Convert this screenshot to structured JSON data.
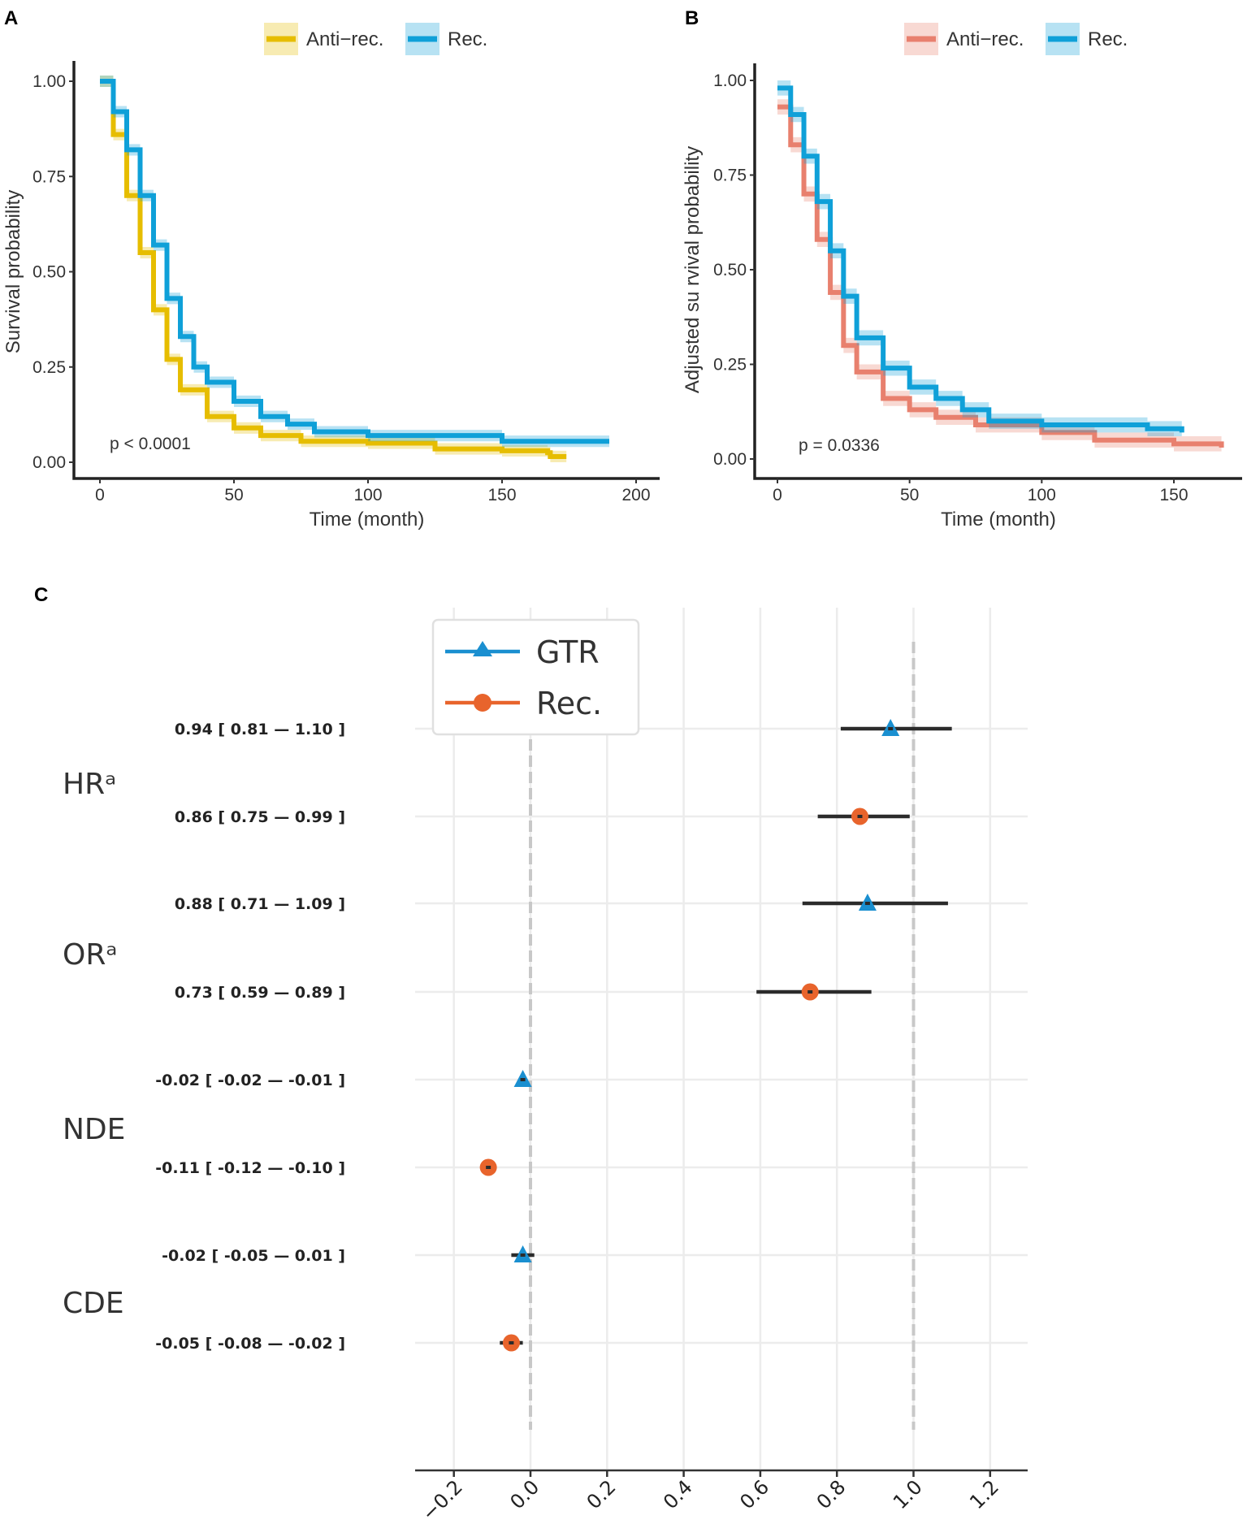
{
  "chart_data": [
    {
      "panel": "A",
      "type": "line",
      "step": true,
      "xlabel": "Time (month)",
      "ylabel": "Survival probability",
      "xlim": [
        0,
        200
      ],
      "ylim": [
        0,
        1
      ],
      "xticks": [
        "0",
        "50",
        "100",
        "150",
        "200"
      ],
      "yticks": [
        "0.00",
        "0.25",
        "0.50",
        "0.75",
        "1.00"
      ],
      "annotation": "p < 0.0001",
      "legend": "top",
      "ci_halfwidth": 0.015,
      "series": [
        {
          "name": "Anti−rec.",
          "color": "#e6bd00",
          "x": [
            0,
            5,
            10,
            15,
            20,
            25,
            30,
            40,
            50,
            60,
            75,
            100,
            125,
            150,
            167,
            168,
            174
          ],
          "y": [
            1.0,
            0.86,
            0.7,
            0.55,
            0.4,
            0.27,
            0.19,
            0.12,
            0.09,
            0.07,
            0.055,
            0.05,
            0.035,
            0.03,
            0.025,
            0.015,
            0.015
          ]
        },
        {
          "name": "Rec.",
          "color": "#0fa0d8",
          "x": [
            0,
            5,
            10,
            15,
            20,
            25,
            30,
            35,
            40,
            50,
            60,
            70,
            80,
            100,
            125,
            150,
            190
          ],
          "y": [
            1.0,
            0.92,
            0.82,
            0.7,
            0.57,
            0.43,
            0.33,
            0.25,
            0.21,
            0.16,
            0.12,
            0.1,
            0.08,
            0.07,
            0.07,
            0.055,
            0.055
          ]
        }
      ]
    },
    {
      "panel": "B",
      "type": "line",
      "step": true,
      "xlabel": "Time (month)",
      "ylabel": "Adjusted su rvival probability",
      "xlim": [
        0,
        150
      ],
      "ylim": [
        0,
        1
      ],
      "xticks": [
        "0",
        "50",
        "100",
        "150"
      ],
      "yticks": [
        "0.00",
        "0.25",
        "0.50",
        "0.75",
        "1.00"
      ],
      "annotation": "p = 0.0336",
      "legend": "top",
      "ci_halfwidth": 0.02,
      "series": [
        {
          "name": "Anti−rec.",
          "color": "#e8806e",
          "x": [
            0,
            5,
            10,
            15,
            20,
            25,
            30,
            40,
            50,
            60,
            75,
            100,
            120,
            150,
            168
          ],
          "y": [
            0.93,
            0.83,
            0.7,
            0.58,
            0.44,
            0.3,
            0.23,
            0.16,
            0.13,
            0.11,
            0.09,
            0.07,
            0.05,
            0.04,
            0.03
          ]
        },
        {
          "name": "Rec.",
          "color": "#0fa0d8",
          "x": [
            0,
            5,
            10,
            15,
            20,
            25,
            30,
            40,
            50,
            60,
            70,
            80,
            100,
            130,
            140,
            153
          ],
          "y": [
            0.98,
            0.91,
            0.8,
            0.68,
            0.55,
            0.43,
            0.32,
            0.24,
            0.19,
            0.16,
            0.13,
            0.1,
            0.09,
            0.09,
            0.08,
            0.07
          ]
        }
      ]
    },
    {
      "panel": "C",
      "type": "scatter",
      "subtype": "forest",
      "xlim": [
        -0.3,
        1.3
      ],
      "xticks": [
        -0.2,
        0.0,
        0.2,
        0.4,
        0.6,
        0.8,
        1.0,
        1.2
      ],
      "xtick_labels": [
        "−0.2",
        "0.0",
        "0.2",
        "0.4",
        "0.6",
        "0.8",
        "1.0",
        "1.2"
      ],
      "reference_lines": [
        0.0,
        1.0
      ],
      "grid": true,
      "legend": "top-left",
      "series": [
        {
          "name": "GTR",
          "color": "#1a8fd0",
          "marker": "triangle"
        },
        {
          "name": "Rec.",
          "color": "#e8642c",
          "marker": "circle"
        }
      ],
      "groups": [
        "HRᵃ",
        "ORᵃ",
        "NDE",
        "CDE"
      ],
      "rows": [
        {
          "group": 0,
          "series": 0,
          "estimate": 0.94,
          "lower": 0.81,
          "upper": 1.1,
          "label": "0.94  [ 0.81 — 1.10 ]"
        },
        {
          "group": 0,
          "series": 1,
          "estimate": 0.86,
          "lower": 0.75,
          "upper": 0.99,
          "label": "0.86  [ 0.75 — 0.99 ]"
        },
        {
          "group": 1,
          "series": 0,
          "estimate": 0.88,
          "lower": 0.71,
          "upper": 1.09,
          "label": "0.88  [ 0.71 — 1.09 ]"
        },
        {
          "group": 1,
          "series": 1,
          "estimate": 0.73,
          "lower": 0.59,
          "upper": 0.89,
          "label": "0.73  [ 0.59 — 0.89 ]"
        },
        {
          "group": 2,
          "series": 0,
          "estimate": -0.02,
          "lower": -0.02,
          "upper": -0.01,
          "label": "-0.02  [ -0.02 — -0.01 ]"
        },
        {
          "group": 2,
          "series": 1,
          "estimate": -0.11,
          "lower": -0.12,
          "upper": -0.1,
          "label": "-0.11  [ -0.12 — -0.10 ]"
        },
        {
          "group": 3,
          "series": 0,
          "estimate": -0.02,
          "lower": -0.05,
          "upper": 0.01,
          "label": "-0.02  [ -0.05 — 0.01 ]"
        },
        {
          "group": 3,
          "series": 1,
          "estimate": -0.05,
          "lower": -0.08,
          "upper": -0.02,
          "label": "-0.05  [ -0.08 — -0.02 ]"
        }
      ]
    }
  ]
}
